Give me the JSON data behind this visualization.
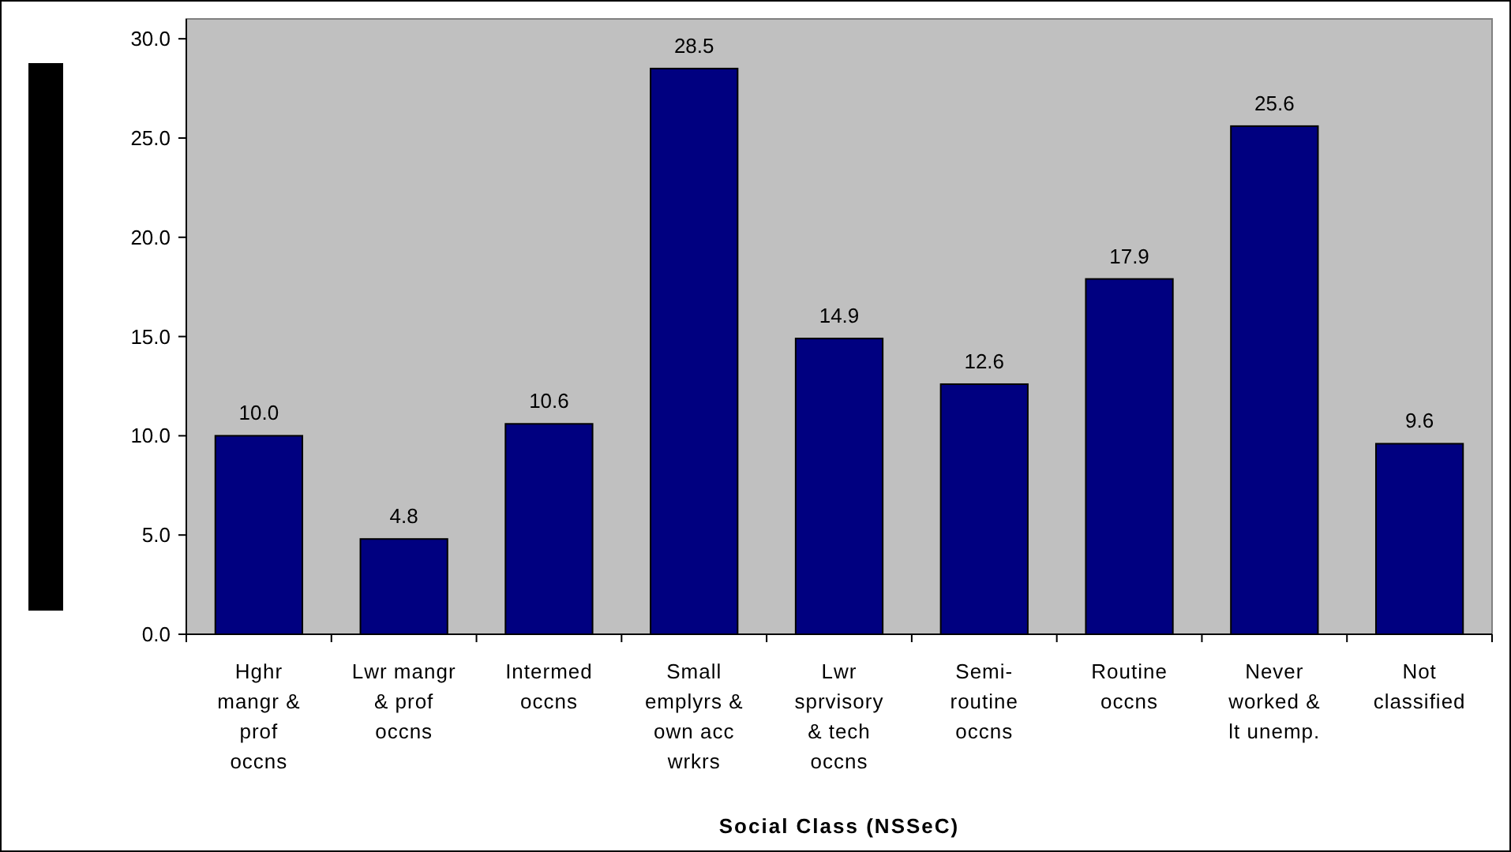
{
  "chart_data": {
    "type": "bar",
    "xlabel": "Social Class (NSSeC)",
    "categories": [
      "Hghr mangr & prof occns",
      "Lwr mangr & prof occns",
      "Intermed occns",
      "Small emplyrs & own acc wrkrs",
      "Lwr sprvisory & tech occns",
      "Semi-routine occns",
      "Routine occns",
      "Never worked & lt unemp.",
      "Not classified"
    ],
    "values": [
      10.0,
      4.8,
      10.6,
      28.5,
      14.9,
      12.6,
      17.9,
      25.6,
      9.6
    ],
    "color": "#000080",
    "ylim": [
      0,
      31
    ],
    "yticks": [
      {
        "value": 0,
        "label": "0.0"
      },
      {
        "value": 5,
        "label": "5.0"
      },
      {
        "value": 10,
        "label": "10.0"
      },
      {
        "value": 15,
        "label": "15.0"
      },
      {
        "value": 20,
        "label": "20.0"
      },
      {
        "value": 25,
        "label": "25.0"
      },
      {
        "value": 30,
        "label": "30.0"
      }
    ],
    "value_labels": [
      "10.0",
      "4.8",
      "10.6",
      "28.5",
      "14.9",
      "12.6",
      "17.9",
      "25.6",
      "9.6"
    ],
    "grid": false
  }
}
